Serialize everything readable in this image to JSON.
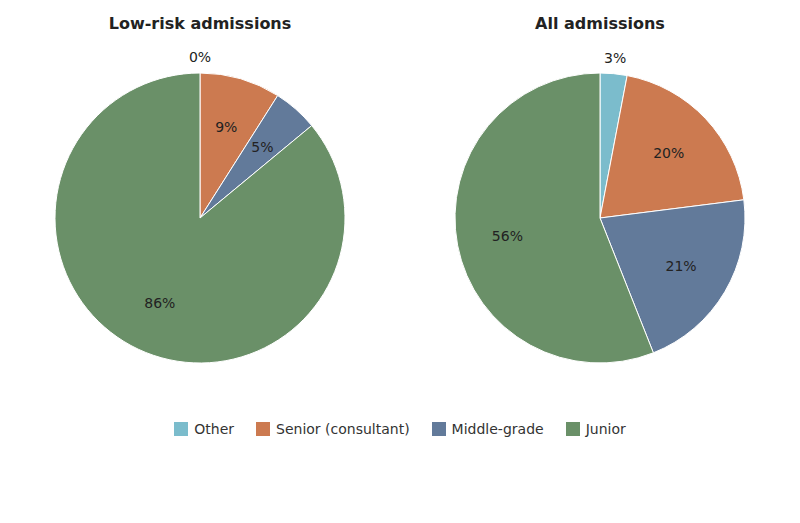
{
  "chart_data": [
    {
      "type": "pie",
      "title": "Low-risk admissions",
      "categories": [
        "Other",
        "Senior (consultant)",
        "Middle-grade",
        "Junior"
      ],
      "values": [
        0,
        9,
        5,
        86
      ],
      "value_labels": [
        "0%",
        "9%",
        "5%",
        "86%"
      ],
      "colors": [
        "#7bbccc",
        "#cc7a50",
        "#627a9a",
        "#6a9068"
      ],
      "data_labels": true,
      "legend": "bottom"
    },
    {
      "type": "pie",
      "title": "All admissions",
      "categories": [
        "Other",
        "Senior (consultant)",
        "Middle-grade",
        "Junior"
      ],
      "values": [
        3,
        20,
        21,
        56
      ],
      "value_labels": [
        "3%",
        "20%",
        "21%",
        "56%"
      ],
      "colors": [
        "#7bbccc",
        "#cc7a50",
        "#627a9a",
        "#6a9068"
      ],
      "data_labels": true,
      "legend": "bottom"
    }
  ]
}
